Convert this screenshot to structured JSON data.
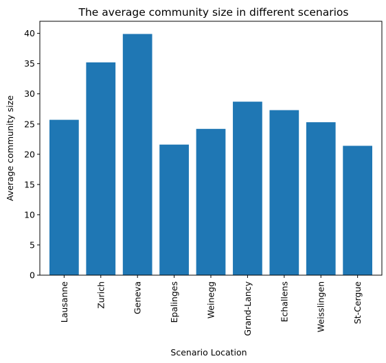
{
  "chart_data": {
    "type": "bar",
    "title": "The average community size in different scenarios",
    "xlabel": "Scenario Location",
    "ylabel": "Average community size",
    "categories": [
      "Lausanne",
      "Zurich",
      "Geneva",
      "Epalinges",
      "Weinegg",
      "Grand-Lancy",
      "Echallens",
      "Weisslingen",
      "St-Cergue"
    ],
    "values": [
      25.7,
      35.2,
      39.9,
      21.6,
      24.2,
      28.7,
      27.3,
      25.3,
      21.4
    ],
    "yticks": [
      0,
      5,
      10,
      15,
      20,
      25,
      30,
      35,
      40
    ],
    "ylim": [
      0,
      42
    ],
    "grid": false,
    "colors": {
      "bar": "#1f77b4"
    }
  }
}
